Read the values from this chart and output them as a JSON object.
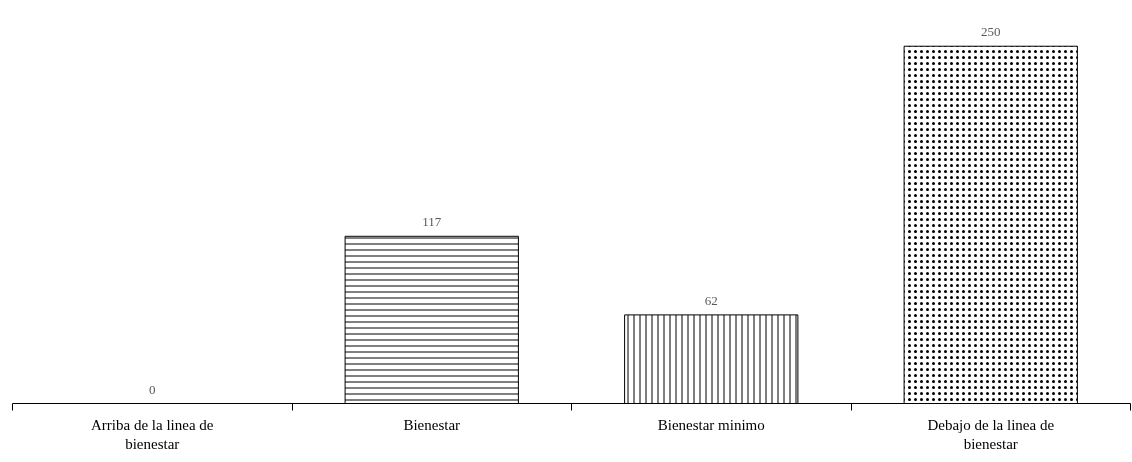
{
  "chart_data": {
    "type": "bar",
    "categories": [
      "Arriba de la linea de bienestar",
      "Bienestar",
      "Bienestar minimo",
      "Debajo de la linea de bienestar"
    ],
    "values": [
      0,
      117,
      62,
      250
    ],
    "color": "#000000",
    "data_labels": true
  }
}
